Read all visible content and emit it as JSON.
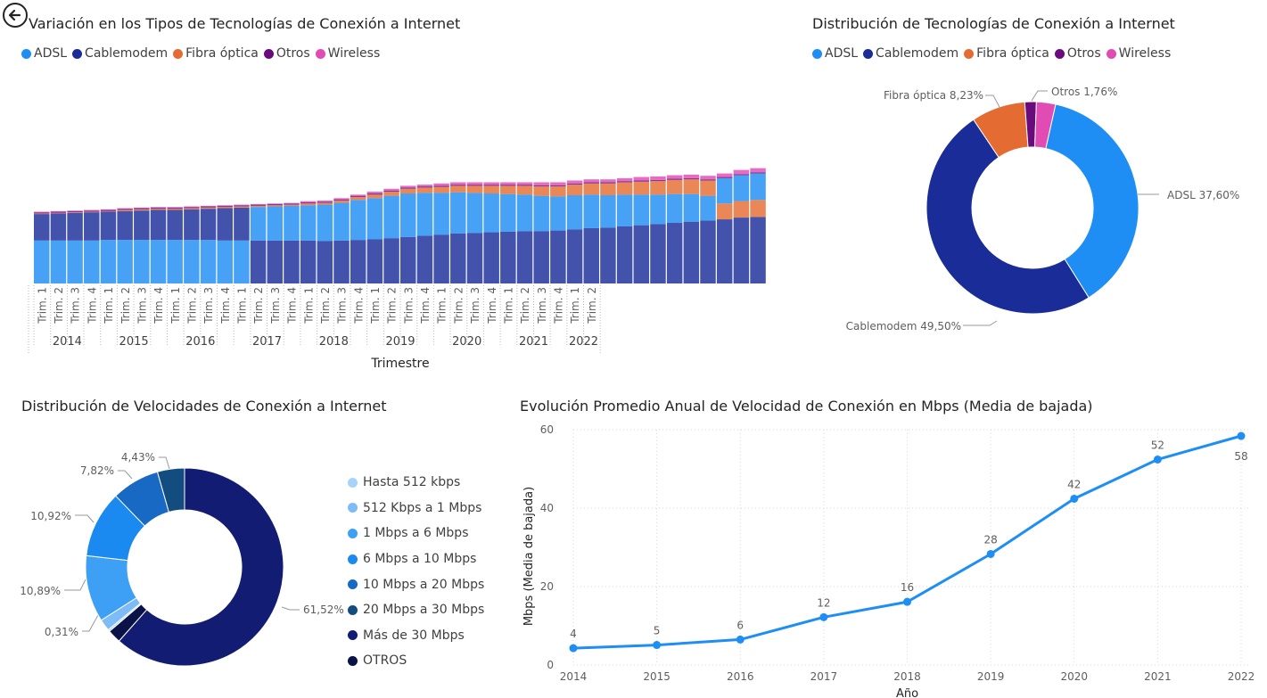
{
  "colors": {
    "adsl": "#1f8ef4",
    "cablemodem": "#1a2c98",
    "fibra": "#e46c32",
    "otros": "#6a0b7d",
    "wireless": "#e04bb4",
    "line": "#1f8ef4"
  },
  "back_icon": "back-arrow-icon",
  "chart_data": [
    {
      "id": "tech_area",
      "type": "area",
      "title": "Variación en los Tipos de Tecnologías de Conexión a Internet",
      "xlabel": "Trimestre",
      "ylabel": "",
      "legend_position": "top-left",
      "legend": [
        "ADSL",
        "Cablemodem",
        "Fibra óptica",
        "Otros",
        "Wireless"
      ],
      "quarter_labels": [
        "Trim. 1",
        "Trim. 2",
        "Trim. 3",
        "Trim. 4"
      ],
      "years": [
        {
          "year": "2014",
          "quarters": [
            "Trim. 1",
            "Trim. 2",
            "Trim. 3",
            "Trim. 4"
          ]
        },
        {
          "year": "2015",
          "quarters": [
            "Trim. 1",
            "Trim. 2",
            "Trim. 3",
            "Trim. 4"
          ]
        },
        {
          "year": "2016",
          "quarters": [
            "Trim. 1",
            "Trim. 2",
            "Trim. 3",
            "Trim. 4"
          ]
        },
        {
          "year": "2017",
          "quarters": [
            "Trim. 1",
            "Trim. 2",
            "Trim. 3",
            "Trim. 4"
          ]
        },
        {
          "year": "2018",
          "quarters": [
            "Trim. 1",
            "Trim. 2",
            "Trim. 3",
            "Trim. 4"
          ]
        },
        {
          "year": "2019",
          "quarters": [
            "Trim. 1",
            "Trim. 2",
            "Trim. 3",
            "Trim. 4"
          ]
        },
        {
          "year": "2020",
          "quarters": [
            "Trim. 1",
            "Trim. 2",
            "Trim. 3",
            "Trim. 4"
          ]
        },
        {
          "year": "2021",
          "quarters": [
            "Trim. 1",
            "Trim. 2",
            "Trim. 3",
            "Trim. 4"
          ]
        },
        {
          "year": "2022",
          "quarters": [
            "Trim. 1",
            "Trim. 2"
          ]
        }
      ],
      "stack_order": [
        "bottom",
        "mid",
        "fibra",
        "otros",
        "wireless"
      ],
      "series": [
        {
          "name": "bottom",
          "values": [
            73,
            73,
            73,
            73,
            74,
            74,
            74,
            74,
            74,
            74,
            74,
            73,
            73,
            73,
            73,
            73,
            73,
            72,
            73,
            74,
            75,
            77,
            79,
            81,
            83,
            85,
            86,
            87,
            88,
            89,
            89,
            90,
            92,
            94,
            95,
            97,
            99,
            101,
            103,
            105,
            107,
            109,
            112,
            113
          ]
        },
        {
          "name": "mid",
          "values": [
            45,
            46,
            47,
            48,
            48,
            49,
            50,
            51,
            51,
            52,
            53,
            55,
            56,
            57,
            58,
            59,
            60,
            62,
            64,
            68,
            70,
            72,
            74,
            73,
            71,
            70,
            68,
            66,
            64,
            62,
            60,
            58,
            58,
            57,
            55,
            54,
            52,
            50,
            49,
            47,
            42,
            43,
            44,
            45
          ]
        },
        {
          "name": "fibra",
          "values": [
            1,
            1,
            1,
            1,
            1,
            2,
            2,
            2,
            2,
            2,
            2,
            2,
            2,
            2,
            2,
            2,
            3,
            3,
            4,
            5,
            6,
            7,
            8,
            9,
            10,
            11,
            12,
            13,
            14,
            15,
            16,
            17,
            18,
            19,
            20,
            21,
            22,
            23,
            24,
            25,
            26,
            27,
            28,
            29
          ]
        },
        {
          "name": "otros",
          "values": [
            2,
            2,
            2,
            2,
            2,
            2,
            2,
            2,
            2,
            2,
            2,
            2,
            2,
            2,
            2,
            2,
            2,
            2,
            2,
            2,
            2,
            2,
            2,
            2,
            2,
            2,
            2,
            2,
            2,
            2,
            2,
            2,
            2,
            2,
            2,
            2,
            2,
            2,
            2,
            2,
            2,
            2,
            2,
            2
          ]
        },
        {
          "name": "wireless",
          "values": [
            1,
            1,
            1,
            1,
            1,
            1,
            1,
            1,
            1,
            1,
            1,
            1,
            1,
            1,
            1,
            1,
            2,
            2,
            2,
            2,
            3,
            3,
            3,
            3,
            4,
            4,
            4,
            4,
            4,
            4,
            5,
            5,
            5,
            5,
            5,
            5,
            6,
            6,
            6,
            6,
            6,
            6,
            7,
            7
          ]
        }
      ]
    },
    {
      "id": "tech_donut",
      "type": "pie",
      "title": "Distribución de Tecnologías de Conexión a Internet",
      "legend_position": "top-left",
      "legend": [
        "ADSL",
        "Cablemodem",
        "Fibra óptica",
        "Otros",
        "Wireless"
      ],
      "slices": [
        {
          "name": "ADSL",
          "value": 37.6,
          "label": "ADSL 37,60%"
        },
        {
          "name": "Cablemodem",
          "value": 49.5,
          "label": "Cablemodem 49,50%"
        },
        {
          "name": "Fibra óptica",
          "value": 8.23,
          "label": "Fibra óptica 8,23%"
        },
        {
          "name": "Otros",
          "value": 1.76,
          "label": "Otros 1,76%"
        },
        {
          "name": "Wireless",
          "value": 2.91,
          "label": ""
        }
      ]
    },
    {
      "id": "speed_donut",
      "type": "pie",
      "title": "Distribución de Velocidades de Conexión a Internet",
      "legend_position": "right",
      "slices": [
        {
          "name": "Más de 30 Mbps",
          "value": 61.52,
          "label": "61,52%",
          "color": "#131c73"
        },
        {
          "name": "OTROS",
          "value": 2.2,
          "label": "",
          "color": "#0a1247"
        },
        {
          "name": "Hasta 512 kbps",
          "value": 0.31,
          "label": "0,31%",
          "color": "#a7d3fb"
        },
        {
          "name": "512 Kbps a 1 Mbps",
          "value": 1.9,
          "label": "",
          "color": "#7ebcf8"
        },
        {
          "name": "1 Mbps a 6 Mbps",
          "value": 10.89,
          "label": "10,89%",
          "color": "#3ea0f5"
        },
        {
          "name": "6 Mbps a 10 Mbps",
          "value": 10.92,
          "label": "10,92%",
          "color": "#1a8af0"
        },
        {
          "name": "10 Mbps a 20 Mbps",
          "value": 7.82,
          "label": "7,82%",
          "color": "#1769c4"
        },
        {
          "name": "20 Mbps a 30 Mbps",
          "value": 4.43,
          "label": "4,43%",
          "color": "#134d80"
        }
      ],
      "legend": [
        {
          "name": "Hasta 512 kbps",
          "color": "#a7d3fb"
        },
        {
          "name": "512 Kbps a 1 Mbps",
          "color": "#7ebcf8"
        },
        {
          "name": "1 Mbps a 6 Mbps",
          "color": "#3ea0f5"
        },
        {
          "name": "6 Mbps a 10 Mbps",
          "color": "#1a8af0"
        },
        {
          "name": "10 Mbps a 20 Mbps",
          "color": "#1769c4"
        },
        {
          "name": "20 Mbps a 30 Mbps",
          "color": "#134d80"
        },
        {
          "name": "Más de 30 Mbps",
          "color": "#131c73"
        },
        {
          "name": "OTROS",
          "color": "#0a1247"
        }
      ]
    },
    {
      "id": "speed_line",
      "type": "line",
      "title": "Evolución Promedio Anual de Velocidad de Conexión en Mbps (Media de bajada)",
      "xlabel": "Año",
      "ylabel": "Mbps (Media de bajada)",
      "ylim": [
        0,
        60
      ],
      "yticks": [
        0,
        20,
        40,
        60
      ],
      "grid": true,
      "x": [
        "2014",
        "2015",
        "2016",
        "2017",
        "2018",
        "2019",
        "2020",
        "2021",
        "2022"
      ],
      "values": [
        4.3,
        5.1,
        6.5,
        12.2,
        16.1,
        28.3,
        42.4,
        52.4,
        58.4
      ],
      "data_labels": [
        "4",
        "5",
        "6",
        "12",
        "16",
        "28",
        "42",
        "52",
        "58"
      ]
    }
  ]
}
